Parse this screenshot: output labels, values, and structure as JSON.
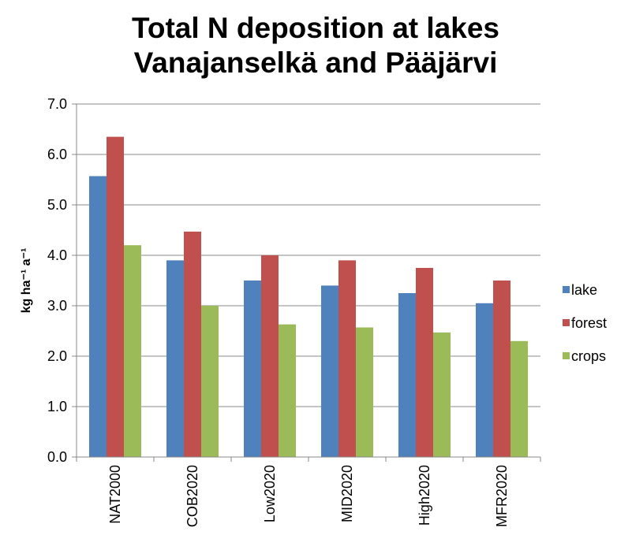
{
  "chart_data": {
    "type": "bar",
    "title": "Total N deposition at lakes Vanajanselkä and Pääjärvi",
    "y_label": "kg ha⁻¹ a⁻¹",
    "categories": [
      "NAT2000",
      "COB2020",
      "Low2020",
      "MID2020",
      "High2020",
      "MFR2020"
    ],
    "series": [
      {
        "name": "lake",
        "color": "#4f81bd",
        "values": [
          5.57,
          3.9,
          3.5,
          3.4,
          3.25,
          3.05
        ]
      },
      {
        "name": "forest",
        "color": "#c0504d",
        "values": [
          6.35,
          4.47,
          4.0,
          3.9,
          3.75,
          3.5
        ]
      },
      {
        "name": "crops",
        "color": "#9bbb59",
        "values": [
          4.2,
          3.0,
          2.63,
          2.57,
          2.47,
          2.3
        ]
      }
    ],
    "ylim": [
      0,
      7
    ],
    "yticks": [
      {
        "value": 0,
        "label": "0.0"
      },
      {
        "value": 1,
        "label": "1.0"
      },
      {
        "value": 2,
        "label": "2.0"
      },
      {
        "value": 3,
        "label": "3.0"
      },
      {
        "value": 4,
        "label": "4.0"
      },
      {
        "value": 5,
        "label": "5.0"
      },
      {
        "value": 6,
        "label": "6.0"
      },
      {
        "value": 7,
        "label": "7.0"
      }
    ],
    "grid": true,
    "legend_position": "right"
  }
}
